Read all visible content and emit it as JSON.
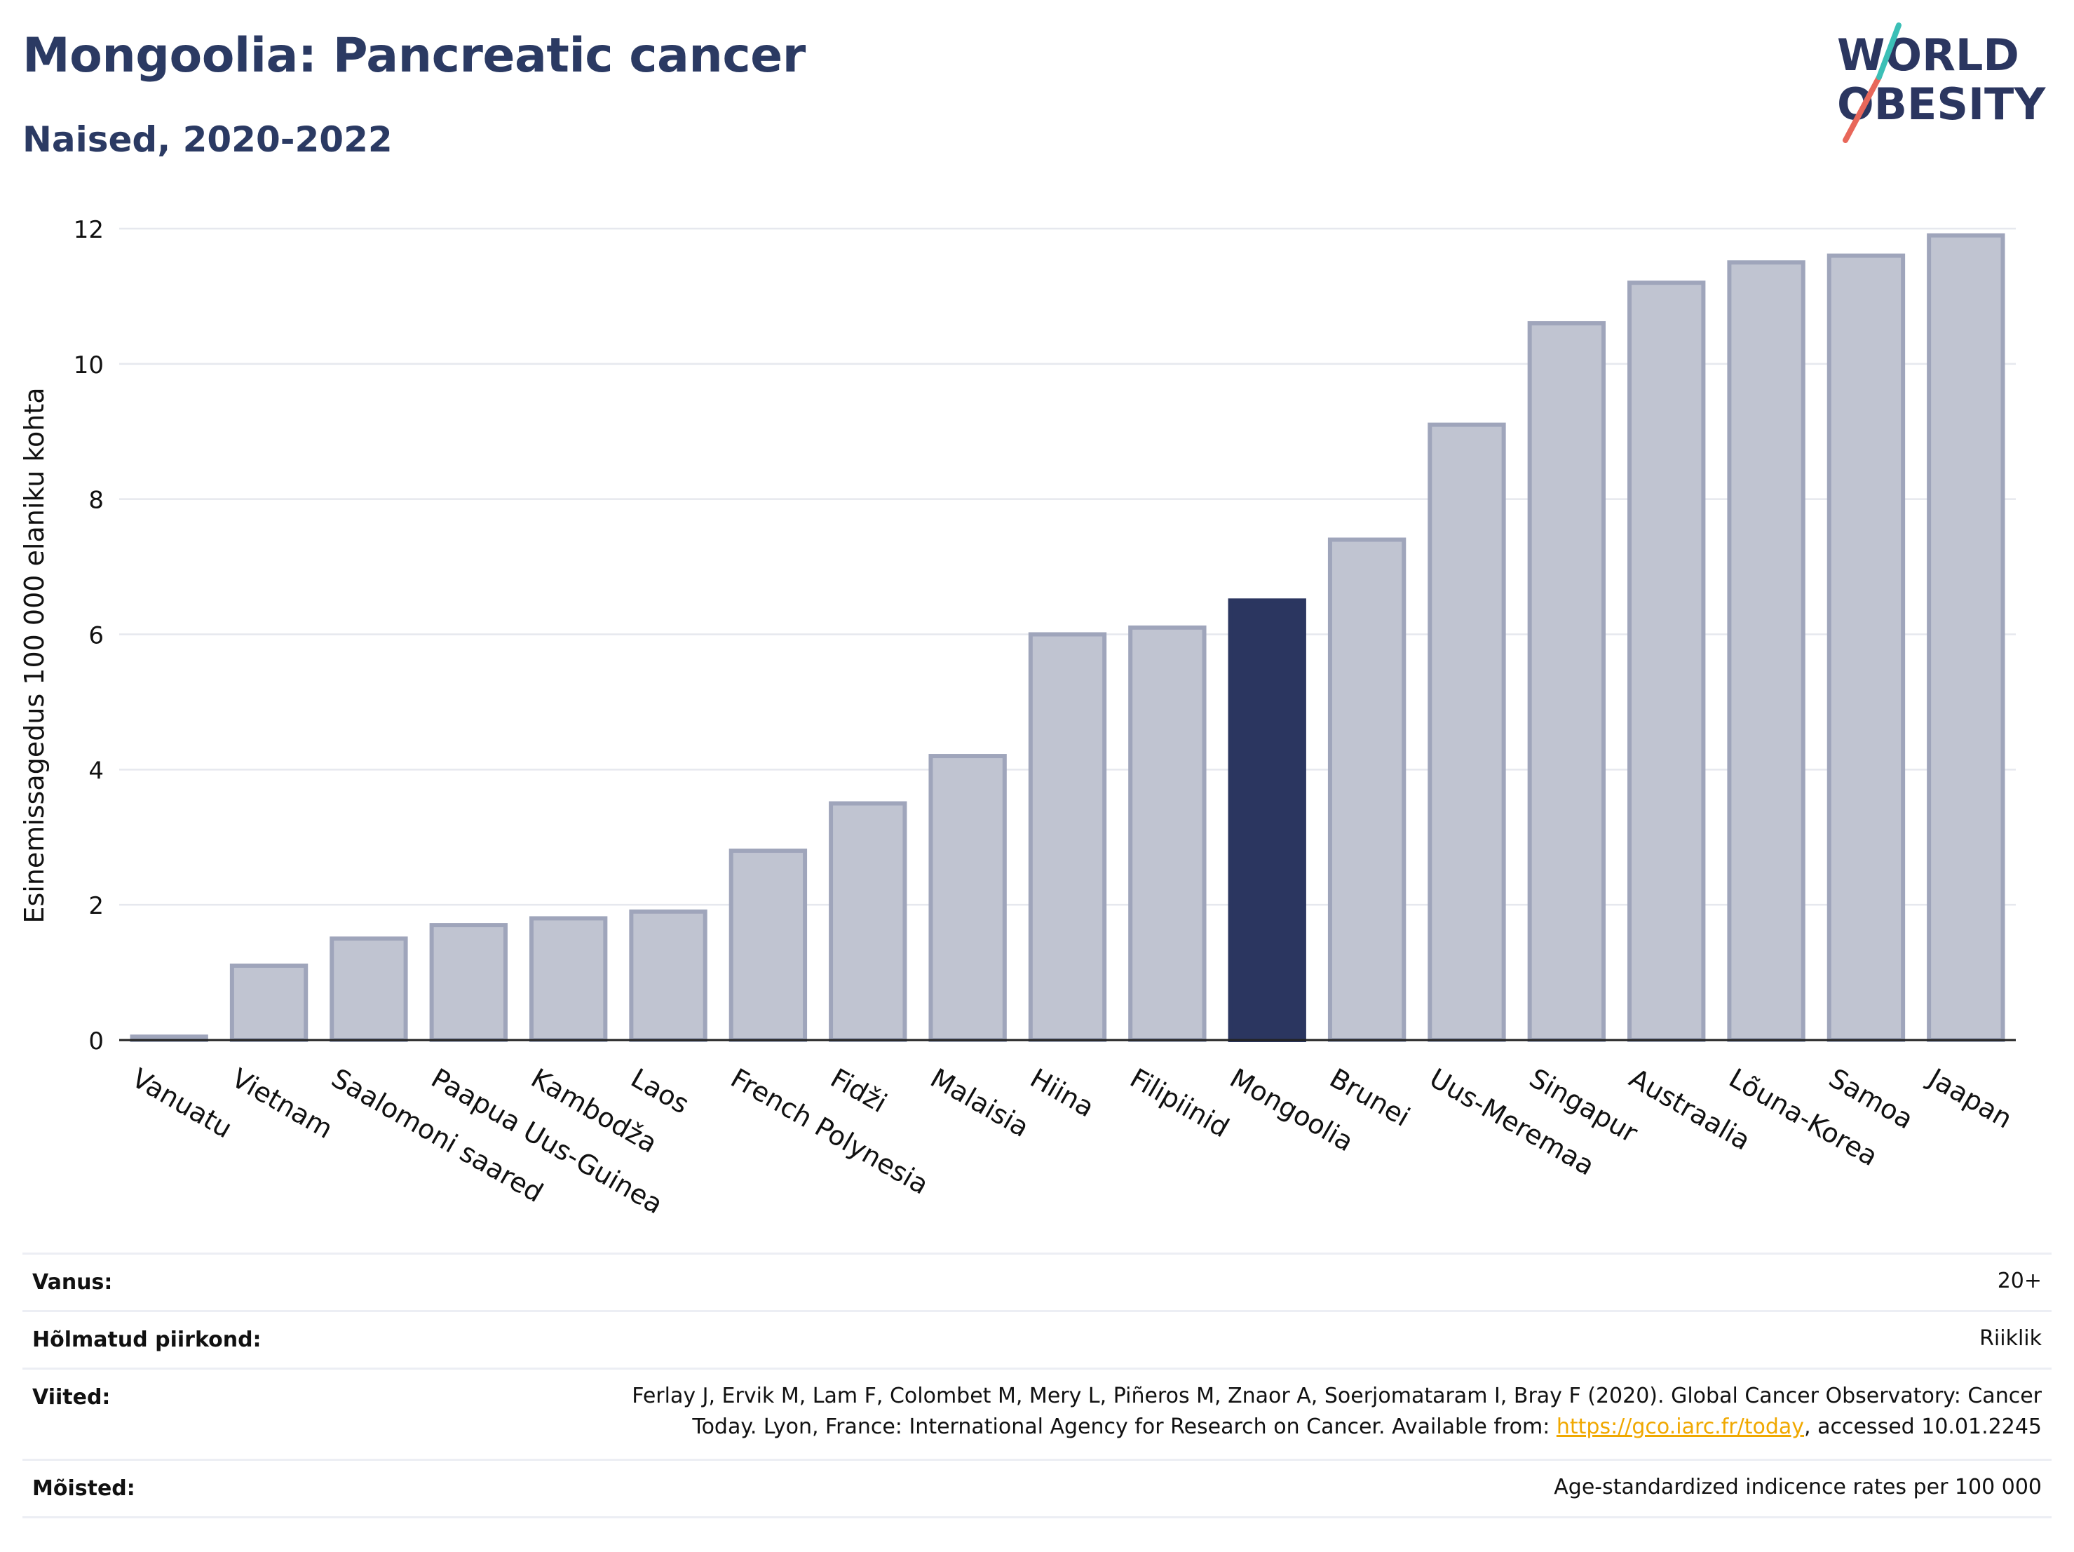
{
  "header": {
    "title": "Mongoolia: Pancreatic cancer",
    "subtitle": "Naised, 2020-2022",
    "logo_line1": "WORLD",
    "logo_line2": "OBESITY"
  },
  "chart_data": {
    "type": "bar",
    "title": "Mongoolia: Pancreatic cancer",
    "subtitle": "Naised, 2020-2022",
    "xlabel": "",
    "ylabel": "Esinemissagedus 100 000 elaniku kohta",
    "ylim": [
      0,
      12
    ],
    "yticks": [
      0,
      2,
      4,
      6,
      8,
      10,
      12
    ],
    "grid": true,
    "categories": [
      "Vanuatu",
      "Vietnam",
      "Saalomoni saared",
      "Paapua Uus-Guinea",
      "Kambodža",
      "Laos",
      "French Polynesia",
      "Fidži",
      "Malaisia",
      "Hiina",
      "Filipiinid",
      "Mongoolia",
      "Brunei",
      "Uus-Meremaa",
      "Singapur",
      "Austraalia",
      "Lõuna-Korea",
      "Samoa",
      "Jaapan"
    ],
    "values": [
      0.05,
      1.1,
      1.5,
      1.7,
      1.8,
      1.9,
      2.8,
      3.5,
      4.2,
      6.0,
      6.1,
      6.5,
      7.4,
      9.1,
      10.6,
      11.2,
      11.5,
      11.6,
      11.9
    ],
    "highlight": "Mongoolia",
    "colors": {
      "bar": "#c0c4d1",
      "bar_stroke": "#9fa5bb",
      "highlight": "#2b3660",
      "grid": "#e6e8ee",
      "axis": "#222222"
    }
  },
  "meta": {
    "rows": [
      {
        "label": "Vanus:",
        "value_lines": [
          "20+"
        ]
      },
      {
        "label": "Hõlmatud piirkond:",
        "value_lines": [
          "Riiklik"
        ]
      },
      {
        "label": "Viited:",
        "value_lines": [
          "Ferlay J, Ervik M, Lam F, Colombet M, Mery L, Piñeros M, Znaor A, Soerjomataram I, Bray F (2020). Global Cancer Observatory: Cancer",
          "Today. Lyon, France: International Agency for Research on Cancer. Available from: "
        ],
        "link": "https://gco.iarc.fr/today",
        "after_link": ", accessed 10.01.2245"
      },
      {
        "label": "Mõisted:",
        "value_lines": [
          "Age-standardized indicence rates per 100 000"
        ]
      }
    ]
  }
}
